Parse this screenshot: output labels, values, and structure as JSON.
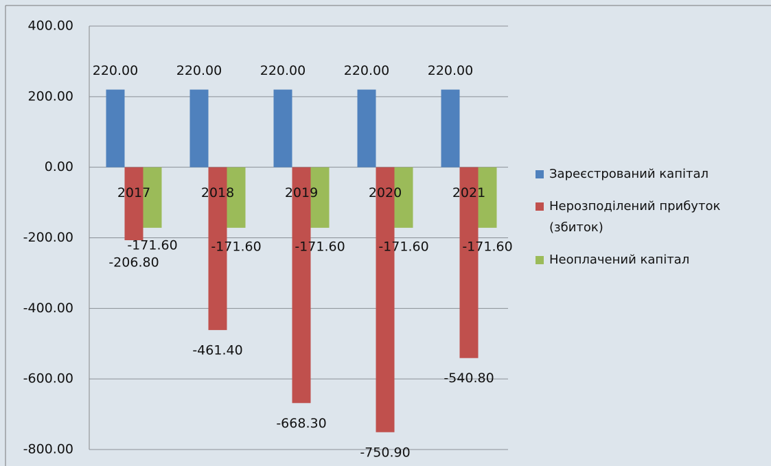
{
  "chart_data": {
    "type": "bar",
    "categories": [
      "2017",
      "2018",
      "2019",
      "2020",
      "2021"
    ],
    "series": [
      {
        "name": "Зареєстрований капітал",
        "color": "#4f81bd",
        "values": [
          220,
          220,
          220,
          220,
          220
        ],
        "value_labels": [
          "220.00",
          "220.00",
          "220.00",
          "220.00",
          "220.00"
        ]
      },
      {
        "name": "Нерозподілений прибуток (збиток)",
        "color": "#c0504d",
        "values": [
          -206.8,
          -461.4,
          -668.3,
          -750.9,
          -540.8
        ],
        "value_labels": [
          "-206.80",
          "-461.40",
          "-668.30",
          "-750.90",
          "-540.80"
        ]
      },
      {
        "name": "Неоплачений капітал",
        "color": "#9bbb59",
        "values": [
          -171.6,
          -171.6,
          -171.6,
          -171.6,
          -171.6
        ],
        "value_labels": [
          "-171.60",
          "-171.60",
          "-171.60",
          "-171.60",
          "-171.60"
        ]
      }
    ],
    "ylim": [
      -800,
      400
    ],
    "yticks": [
      {
        "value": -800,
        "label": "-800.00"
      },
      {
        "value": -600,
        "label": "-600.00"
      },
      {
        "value": -400,
        "label": "-400.00"
      },
      {
        "value": -200,
        "label": "-200.00"
      },
      {
        "value": 0,
        "label": "0.00"
      },
      {
        "value": 200,
        "label": "200.00"
      },
      {
        "value": 400,
        "label": "400.00"
      }
    ],
    "grid": true,
    "legend": "right"
  }
}
